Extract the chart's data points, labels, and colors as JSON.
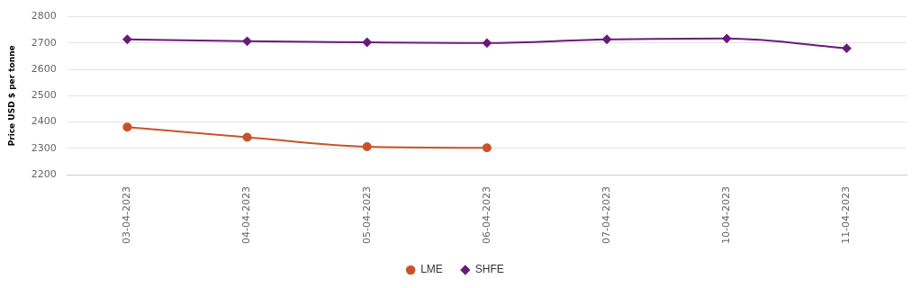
{
  "chart_data": {
    "type": "line",
    "ylabel": "Price USD $ per tonne",
    "categories": [
      "03-04-2023",
      "04-04-2023",
      "05-04-2023",
      "06-04-2023",
      "07-04-2023",
      "10-04-2023",
      "11-04-2023"
    ],
    "series": [
      {
        "name": "LME",
        "color": "#c8532b",
        "marker": "circle",
        "values": [
          2381,
          2342,
          2306,
          2302,
          null,
          null,
          null
        ]
      },
      {
        "name": "SHFE",
        "color": "#6a1b7a",
        "marker": "diamond",
        "values": [
          2714,
          2707,
          2703,
          2700,
          2714,
          2717,
          2680
        ]
      }
    ],
    "ylim": [
      2200,
      2800
    ],
    "yticks": [
      2200,
      2300,
      2400,
      2500,
      2600,
      2700,
      2800
    ],
    "grid": "y",
    "legend": "bottom"
  }
}
